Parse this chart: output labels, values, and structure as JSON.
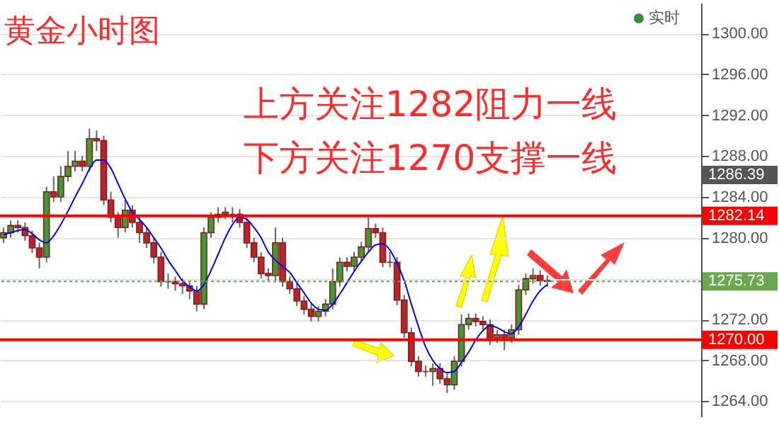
{
  "chart_data": {
    "type": "candlestick",
    "title": "黄金小时图",
    "annotations": [
      "上方关注1282阻力一线",
      "下方关注1270支撑一线",
      "实时",
      "1286.39"
    ],
    "categories": [
      null,
      null,
      null,
      null,
      null,
      null,
      null,
      null,
      null,
      null,
      null,
      null,
      null,
      null,
      null,
      null,
      null,
      null,
      null,
      null,
      null,
      null,
      null,
      null,
      null,
      null,
      null,
      null,
      null,
      null,
      null,
      null,
      null,
      null,
      null,
      null,
      null,
      null,
      null,
      null,
      null,
      null,
      null,
      null,
      null,
      null,
      null,
      null,
      null,
      null,
      null,
      null,
      null,
      null,
      null,
      null,
      null,
      null,
      null,
      null,
      null,
      null,
      null,
      null,
      null,
      null,
      null,
      null,
      null,
      null,
      null,
      null,
      null,
      null,
      null,
      null,
      null,
      null,
      null,
      null,
      null,
      null,
      null,
      null,
      null,
      null,
      null,
      null,
      null,
      null,
      null,
      null,
      null,
      null,
      null,
      null,
      null,
      null
    ],
    "ohlc": [
      [
        1280.0,
        1281.0,
        1279.5,
        1280.5
      ],
      [
        1280.5,
        1281.7,
        1280.0,
        1281.2
      ],
      [
        1281.2,
        1281.7,
        1280.5,
        1281.0
      ],
      [
        1281.0,
        1281.5,
        1279.7,
        1280.2
      ],
      [
        1280.2,
        1280.7,
        1278.5,
        1279.0
      ],
      [
        1279.0,
        1279.5,
        1277.0,
        1278.1
      ],
      [
        1278.1,
        1285.0,
        1277.6,
        1284.5
      ],
      [
        1284.5,
        1286.0,
        1283.5,
        1284.0
      ],
      [
        1284.0,
        1287.0,
        1283.5,
        1286.0
      ],
      [
        1286.0,
        1288.5,
        1285.5,
        1287.0
      ],
      [
        1287.0,
        1288.5,
        1286.5,
        1287.5
      ],
      [
        1287.5,
        1288.0,
        1286.5,
        1287.0
      ],
      [
        1287.0,
        1290.7,
        1286.5,
        1289.7
      ],
      [
        1289.7,
        1290.5,
        1288.5,
        1289.5
      ],
      [
        1289.5,
        1290.0,
        1283.2,
        1283.7
      ],
      [
        1283.7,
        1284.5,
        1281.5,
        1282.0
      ],
      [
        1282.0,
        1282.5,
        1280.0,
        1281.0
      ],
      [
        1281.0,
        1283.7,
        1280.5,
        1282.7
      ],
      [
        1282.7,
        1283.2,
        1281.0,
        1281.5
      ],
      [
        1281.5,
        1282.0,
        1279.5,
        1280.5
      ],
      [
        1280.5,
        1281.0,
        1279.0,
        1279.5
      ],
      [
        1279.5,
        1280.0,
        1277.5,
        1278.1
      ],
      [
        1278.1,
        1278.6,
        1275.2,
        1275.7
      ],
      [
        1275.7,
        1276.5,
        1275.0,
        1275.7
      ],
      [
        1275.7,
        1276.2,
        1274.8,
        1275.5
      ],
      [
        1275.5,
        1276.0,
        1274.5,
        1275.3
      ],
      [
        1275.3,
        1275.8,
        1274.0,
        1274.8
      ],
      [
        1274.8,
        1275.3,
        1272.8,
        1273.5
      ],
      [
        1273.5,
        1281.0,
        1273.0,
        1280.5
      ],
      [
        1280.5,
        1282.5,
        1280.0,
        1282.0
      ],
      [
        1282.0,
        1283.0,
        1281.5,
        1282.3
      ],
      [
        1282.3,
        1283.0,
        1281.8,
        1282.5
      ],
      [
        1282.3,
        1283.0,
        1281.5,
        1282.3
      ],
      [
        1282.3,
        1282.8,
        1281.0,
        1281.5
      ],
      [
        1281.5,
        1282.0,
        1279.0,
        1279.5
      ],
      [
        1279.5,
        1280.0,
        1277.6,
        1278.1
      ],
      [
        1278.1,
        1278.6,
        1276.0,
        1276.5
      ],
      [
        1276.5,
        1277.0,
        1275.8,
        1276.3
      ],
      [
        1276.3,
        1281.0,
        1275.8,
        1279.5
      ],
      [
        1279.5,
        1280.0,
        1275.2,
        1275.7
      ],
      [
        1275.7,
        1276.2,
        1274.5,
        1275.0
      ],
      [
        1275.0,
        1275.5,
        1273.3,
        1273.8
      ],
      [
        1273.8,
        1274.3,
        1272.5,
        1273.0
      ],
      [
        1273.0,
        1273.5,
        1271.8,
        1272.3
      ],
      [
        1272.3,
        1273.3,
        1271.8,
        1272.8
      ],
      [
        1272.8,
        1274.0,
        1272.3,
        1273.5
      ],
      [
        1273.5,
        1277.0,
        1273.0,
        1275.7
      ],
      [
        1275.7,
        1278.1,
        1275.2,
        1277.6
      ],
      [
        1277.6,
        1278.1,
        1276.7,
        1277.2
      ],
      [
        1277.2,
        1278.6,
        1276.7,
        1278.1
      ],
      [
        1278.1,
        1279.6,
        1277.6,
        1279.1
      ],
      [
        1279.1,
        1282.0,
        1278.6,
        1280.9
      ],
      [
        1280.9,
        1281.4,
        1280.0,
        1280.5
      ],
      [
        1280.5,
        1281.0,
        1277.1,
        1277.6
      ],
      [
        1277.6,
        1278.6,
        1277.1,
        1277.6
      ],
      [
        1277.6,
        1278.1,
        1273.4,
        1273.9
      ],
      [
        1273.9,
        1274.4,
        1270.2,
        1270.7
      ],
      [
        1270.7,
        1271.2,
        1267.4,
        1267.9
      ],
      [
        1267.9,
        1268.4,
        1266.4,
        1266.9
      ],
      [
        1266.9,
        1267.5,
        1266.4,
        1266.9
      ],
      [
        1266.9,
        1267.7,
        1265.5,
        1267.2
      ],
      [
        1267.2,
        1267.7,
        1265.7,
        1266.2
      ],
      [
        1266.2,
        1266.7,
        1264.8,
        1265.6
      ],
      [
        1265.6,
        1268.4,
        1265.1,
        1267.9
      ],
      [
        1267.9,
        1272.5,
        1267.4,
        1271.5
      ],
      [
        1271.5,
        1272.6,
        1271.0,
        1272.1
      ],
      [
        1272.1,
        1272.6,
        1271.3,
        1271.8
      ],
      [
        1271.8,
        1272.3,
        1271.0,
        1271.5
      ],
      [
        1271.5,
        1272.0,
        1269.5,
        1270.2
      ],
      [
        1270.2,
        1271.0,
        1269.7,
        1270.5
      ],
      [
        1270.5,
        1271.0,
        1269.0,
        1270.2
      ],
      [
        1270.2,
        1271.5,
        1269.7,
        1271.0
      ],
      [
        1271.0,
        1275.4,
        1270.5,
        1274.9
      ],
      [
        1274.9,
        1276.5,
        1274.4,
        1276.0
      ],
      [
        1276.0,
        1277.0,
        1275.5,
        1276.3
      ],
      [
        1276.3,
        1276.8,
        1275.3,
        1275.8
      ],
      [
        1275.8,
        1276.3,
        1275.2,
        1275.73
      ],
      null,
      null,
      null,
      null,
      null,
      null,
      null,
      null,
      null,
      null,
      null,
      null,
      null,
      null,
      null,
      null,
      null,
      null,
      null,
      null,
      null
    ],
    "series": [
      {
        "type": "line",
        "color": "#0000ff",
        "values": [
          1280.3,
          1280.5,
          1280.7,
          1280.8,
          1280.4,
          1279.8,
          1279.5,
          1280.2,
          1281.3,
          1282.6,
          1284.0,
          1285.3,
          1286.7,
          1287.6,
          1287.6,
          1286.8,
          1285.3,
          1283.8,
          1282.5,
          1281.8,
          1281.0,
          1280.0,
          1279.0,
          1277.8,
          1276.8,
          1275.8,
          1275.2,
          1274.8,
          1275.4,
          1276.8,
          1278.4,
          1280.0,
          1281.3,
          1282.0,
          1281.8,
          1281.0,
          1280.0,
          1278.6,
          1277.8,
          1277.2,
          1276.6,
          1275.6,
          1274.6,
          1273.6,
          1273.0,
          1272.9,
          1273.5,
          1274.5,
          1275.6,
          1276.7,
          1277.7,
          1278.6,
          1279.3,
          1279.4,
          1278.8,
          1277.5,
          1275.8,
          1273.5,
          1271.3,
          1269.3,
          1268.0,
          1267.2,
          1266.8,
          1266.9,
          1267.8,
          1268.8,
          1270.0,
          1270.9,
          1271.4,
          1271.2,
          1270.8,
          1270.6,
          1271.3,
          1272.5,
          1273.8,
          1274.8,
          1275.4,
          null,
          null,
          null,
          null,
          null,
          null,
          null,
          null,
          null,
          null,
          null,
          null,
          null,
          null,
          null,
          null,
          null,
          null,
          null,
          null,
          null
        ]
      }
    ],
    "ylim": [
      1262.5,
      1303
    ],
    "yticks": [
      {
        "value": 1264,
        "label": "1264.00"
      },
      {
        "value": 1268,
        "label": "1268.00"
      },
      {
        "value": 1272,
        "label": "1272.00"
      },
      {
        "value": 1276,
        "label": null
      },
      {
        "value": 1280,
        "label": "1280.00"
      },
      {
        "value": 1284,
        "label": "1284.00"
      },
      {
        "value": 1288,
        "label": "1288.00"
      },
      {
        "value": 1292,
        "label": "1292.00"
      },
      {
        "value": 1296,
        "label": "1296.00"
      },
      {
        "value": 1300,
        "label": "1300.00"
      }
    ],
    "ref_lines": [
      {
        "axis": "y",
        "value": 1282.14,
        "label": "1282.14",
        "color": "#ff0000"
      },
      {
        "axis": "y",
        "value": 1270.0,
        "label": "1270.00",
        "color": "#ff0000"
      },
      {
        "axis": "y",
        "value": 1275.73,
        "label": "1275.73",
        "color": "#6aa84f",
        "line_style": "dotted"
      }
    ],
    "grid": "y",
    "tick_labels": "y",
    "legend": false
  }
}
